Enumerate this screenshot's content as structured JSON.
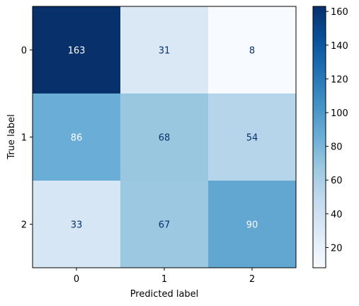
{
  "chart_data": {
    "type": "heatmap",
    "title": "",
    "xlabel": "Predicted label",
    "ylabel": "True label",
    "x_categories": [
      "0",
      "1",
      "2"
    ],
    "y_categories": [
      "0",
      "1",
      "2"
    ],
    "values": [
      [
        163,
        31,
        8
      ],
      [
        86,
        68,
        54
      ],
      [
        33,
        67,
        90
      ]
    ],
    "colormap": "Blues",
    "color_low": "#f7fbff",
    "color_high": "#08306b",
    "colorbar": {
      "range": [
        8,
        163
      ],
      "ticks": [
        20,
        40,
        60,
        80,
        100,
        120,
        140,
        160
      ]
    },
    "text_color_light": "#ffffff",
    "text_color_dark": "#08306b",
    "grid": false
  }
}
